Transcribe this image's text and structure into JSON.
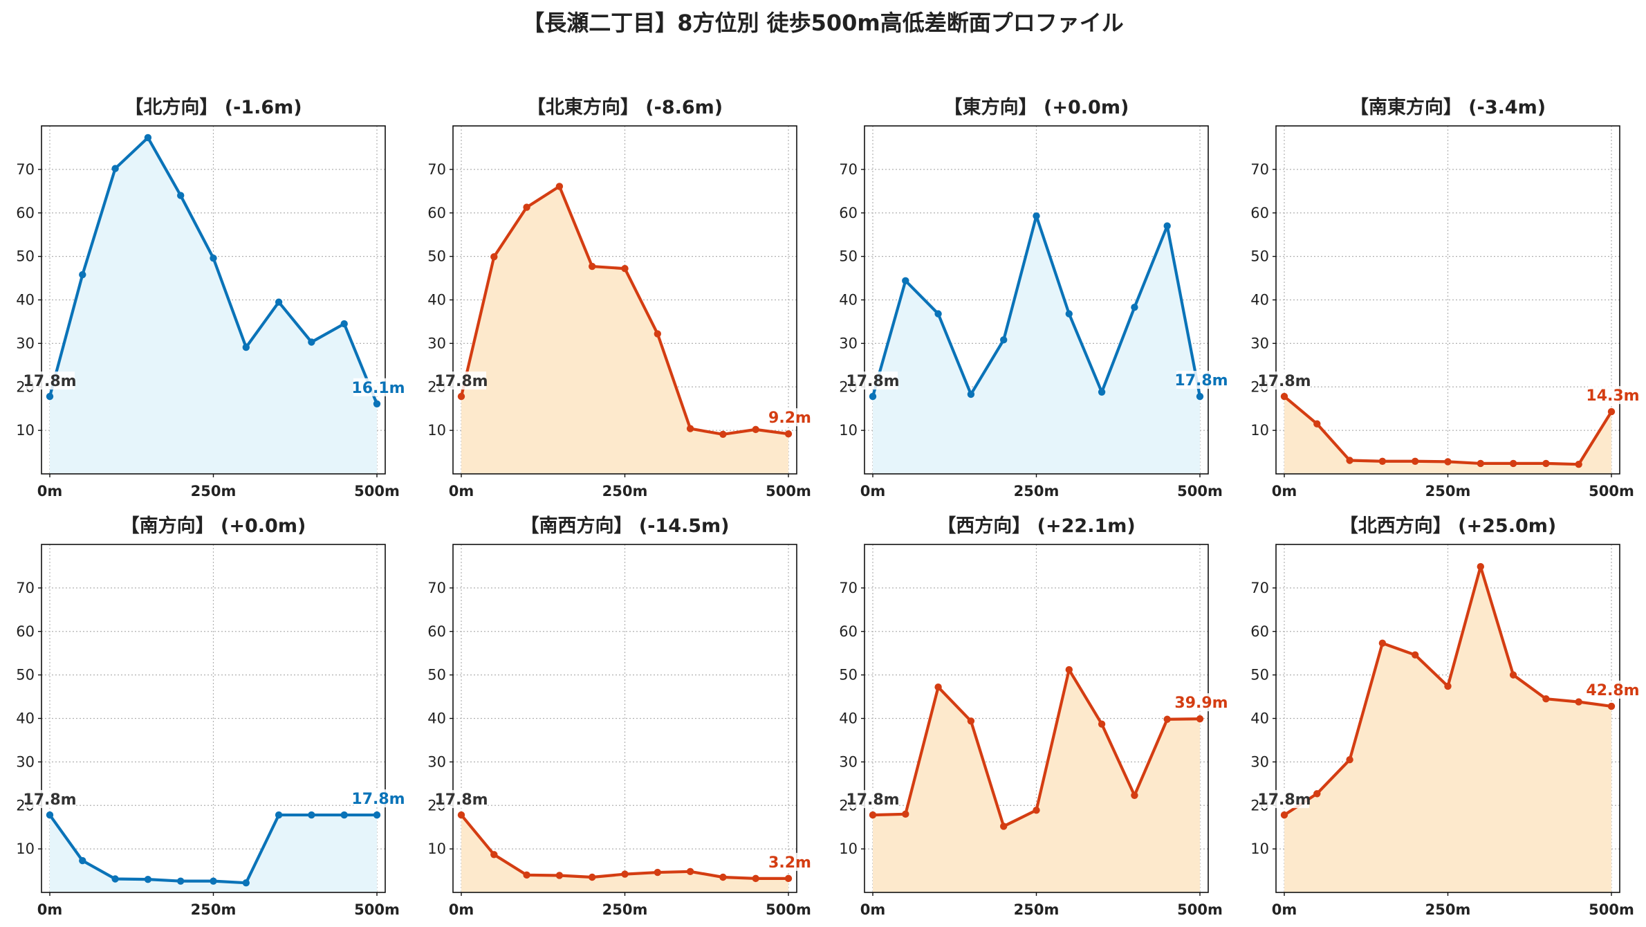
{
  "figure_title": "【長瀬二丁目】8方位別 徒歩500m高低差断面プロファイル",
  "colors": {
    "blue": "#0a73b8",
    "blue_fill": "#e6f5fb",
    "red": "#d43d12",
    "red_fill": "#fde9cc",
    "start_label": "#333333"
  },
  "chart_data": [
    {
      "type": "area",
      "title": "【北方向】 (-1.6m)",
      "color": "blue",
      "x": [
        0,
        50,
        100,
        150,
        200,
        250,
        300,
        350,
        400,
        450,
        500
      ],
      "y": [
        17.8,
        45.8,
        70.2,
        77.3,
        64.0,
        49.6,
        29.1,
        39.5,
        30.3,
        34.5,
        16.1
      ],
      "start_label": "17.8m",
      "end_label": "16.1m",
      "x_ticks": [
        "0m",
        "250m",
        "500m"
      ],
      "y_ticks": [
        10,
        20,
        30,
        40,
        50,
        60,
        70
      ],
      "ylim": [
        0,
        80
      ],
      "grid": true
    },
    {
      "type": "area",
      "title": "【北東方向】 (-8.6m)",
      "color": "red",
      "x": [
        0,
        50,
        100,
        150,
        200,
        250,
        300,
        350,
        400,
        450,
        500
      ],
      "y": [
        17.8,
        49.9,
        61.3,
        66.1,
        47.7,
        47.2,
        32.2,
        10.4,
        9.1,
        10.2,
        9.2
      ],
      "start_label": "17.8m",
      "end_label": "9.2m",
      "x_ticks": [
        "0m",
        "250m",
        "500m"
      ],
      "y_ticks": [
        10,
        20,
        30,
        40,
        50,
        60,
        70
      ],
      "ylim": [
        0,
        80
      ],
      "grid": true
    },
    {
      "type": "area",
      "title": "【東方向】 (+0.0m)",
      "color": "blue",
      "x": [
        0,
        50,
        100,
        150,
        200,
        250,
        300,
        350,
        400,
        450,
        500
      ],
      "y": [
        17.8,
        44.4,
        36.8,
        18.3,
        30.8,
        59.3,
        36.8,
        18.8,
        38.3,
        57.0,
        17.8
      ],
      "start_label": "17.8m",
      "end_label": "17.8m",
      "x_ticks": [
        "0m",
        "250m",
        "500m"
      ],
      "y_ticks": [
        10,
        20,
        30,
        40,
        50,
        60,
        70
      ],
      "ylim": [
        0,
        80
      ],
      "grid": true
    },
    {
      "type": "area",
      "title": "【南東方向】 (-3.4m)",
      "color": "red",
      "x": [
        0,
        50,
        100,
        150,
        200,
        250,
        300,
        350,
        400,
        450,
        500
      ],
      "y": [
        17.8,
        11.5,
        3.1,
        2.9,
        2.9,
        2.8,
        2.4,
        2.4,
        2.4,
        2.2,
        14.3
      ],
      "start_label": "17.8m",
      "end_label": "14.3m",
      "x_ticks": [
        "0m",
        "250m",
        "500m"
      ],
      "y_ticks": [
        10,
        20,
        30,
        40,
        50,
        60,
        70
      ],
      "ylim": [
        0,
        80
      ],
      "grid": true
    },
    {
      "type": "area",
      "title": "【南方向】 (+0.0m)",
      "color": "blue",
      "x": [
        0,
        50,
        100,
        150,
        200,
        250,
        300,
        350,
        400,
        450,
        500
      ],
      "y": [
        17.8,
        7.3,
        3.1,
        3.0,
        2.6,
        2.6,
        2.2,
        17.8,
        17.8,
        17.8,
        17.8
      ],
      "start_label": "17.8m",
      "end_label": "17.8m",
      "x_ticks": [
        "0m",
        "250m",
        "500m"
      ],
      "y_ticks": [
        10,
        20,
        30,
        40,
        50,
        60,
        70
      ],
      "ylim": [
        0,
        80
      ],
      "grid": true
    },
    {
      "type": "area",
      "title": "【南西方向】 (-14.5m)",
      "color": "red",
      "x": [
        0,
        50,
        100,
        150,
        200,
        250,
        300,
        350,
        400,
        450,
        500
      ],
      "y": [
        17.8,
        8.7,
        4.0,
        3.9,
        3.5,
        4.2,
        4.6,
        4.8,
        3.5,
        3.2,
        3.2
      ],
      "start_label": "17.8m",
      "end_label": "3.2m",
      "x_ticks": [
        "0m",
        "250m",
        "500m"
      ],
      "y_ticks": [
        10,
        20,
        30,
        40,
        50,
        60,
        70
      ],
      "ylim": [
        0,
        80
      ],
      "grid": true
    },
    {
      "type": "area",
      "title": "【西方向】 (+22.1m)",
      "color": "red",
      "x": [
        0,
        50,
        100,
        150,
        200,
        250,
        300,
        350,
        400,
        450,
        500
      ],
      "y": [
        17.8,
        18.0,
        47.2,
        39.4,
        15.2,
        18.9,
        51.2,
        38.7,
        22.3,
        39.8,
        39.9
      ],
      "start_label": "17.8m",
      "end_label": "39.9m",
      "x_ticks": [
        "0m",
        "250m",
        "500m"
      ],
      "y_ticks": [
        10,
        20,
        30,
        40,
        50,
        60,
        70
      ],
      "ylim": [
        0,
        80
      ],
      "grid": true
    },
    {
      "type": "area",
      "title": "【北西方向】 (+25.0m)",
      "color": "red",
      "x": [
        0,
        50,
        100,
        150,
        200,
        250,
        300,
        350,
        400,
        450,
        500
      ],
      "y": [
        17.8,
        22.7,
        30.5,
        57.3,
        54.6,
        47.4,
        74.9,
        50.0,
        44.5,
        43.8,
        42.8
      ],
      "start_label": "17.8m",
      "end_label": "42.8m",
      "x_ticks": [
        "0m",
        "250m",
        "500m"
      ],
      "y_ticks": [
        10,
        20,
        30,
        40,
        50,
        60,
        70
      ],
      "ylim": [
        0,
        80
      ],
      "grid": true
    }
  ]
}
